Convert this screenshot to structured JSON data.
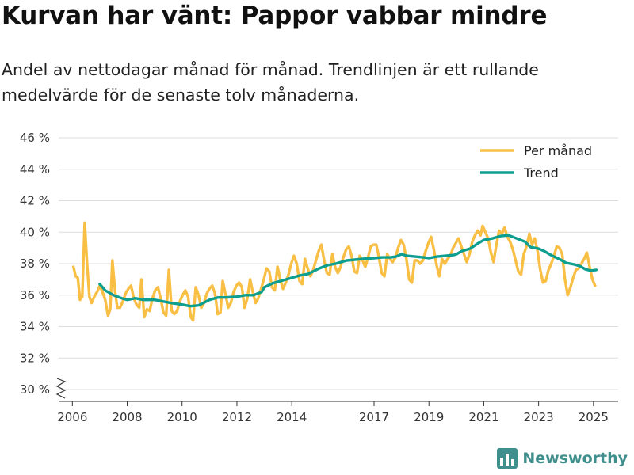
{
  "title": "Kurvan har vänt: Pappor vabbar mindre",
  "subtitle": "Andel av nettodagar månad för månad. Trendlinjen är ett rullande medelvärde för de senaste tolv månaderna.",
  "brand": "Newsworthy",
  "colors": {
    "monthly": "#f9bf45",
    "trend": "#0d9e8f",
    "grid": "#dddddd",
    "brand": "#3f8f8c"
  },
  "chart_data": {
    "type": "line",
    "title": "Kurvan har vänt: Pappor vabbar mindre",
    "xlabel": "",
    "ylabel": "",
    "x_range": [
      2005.5,
      2025.9
    ],
    "ylim": [
      30,
      46
    ],
    "y_break_below": 30,
    "y_ticks": [
      30,
      32,
      34,
      36,
      38,
      40,
      42,
      44,
      46
    ],
    "y_tick_labels": [
      "30 %",
      "32 %",
      "34 %",
      "36 %",
      "38 %",
      "40 %",
      "42 %",
      "44 %",
      "46 %"
    ],
    "x_ticks": [
      2006,
      2008,
      2010,
      2012,
      2014,
      2017,
      2019,
      2021,
      2023,
      2025
    ],
    "x_tick_labels": [
      "2006",
      "2008",
      "2010",
      "2012",
      "2014",
      "2017",
      "2019",
      "2021",
      "2023",
      "2025"
    ],
    "legend_position": "top-right",
    "series": [
      {
        "name": "Per månad",
        "points": [
          [
            2006.04,
            37.8
          ],
          [
            2006.12,
            37.2
          ],
          [
            2006.2,
            37.1
          ],
          [
            2006.28,
            35.7
          ],
          [
            2006.36,
            35.9
          ],
          [
            2006.45,
            40.6
          ],
          [
            2006.54,
            37.9
          ],
          [
            2006.62,
            35.9
          ],
          [
            2006.7,
            35.5
          ],
          [
            2006.8,
            35.9
          ],
          [
            2006.9,
            36.2
          ],
          [
            2007.0,
            36.6
          ],
          [
            2007.1,
            36.2
          ],
          [
            2007.2,
            35.7
          ],
          [
            2007.3,
            34.7
          ],
          [
            2007.38,
            35.1
          ],
          [
            2007.46,
            38.2
          ],
          [
            2007.56,
            36.2
          ],
          [
            2007.64,
            35.2
          ],
          [
            2007.74,
            35.2
          ],
          [
            2007.84,
            35.6
          ],
          [
            2007.94,
            36.1
          ],
          [
            2008.04,
            36.4
          ],
          [
            2008.14,
            36.6
          ],
          [
            2008.24,
            35.8
          ],
          [
            2008.34,
            35.4
          ],
          [
            2008.44,
            35.2
          ],
          [
            2008.52,
            37.0
          ],
          [
            2008.62,
            34.6
          ],
          [
            2008.72,
            35.1
          ],
          [
            2008.82,
            35.0
          ],
          [
            2008.92,
            35.8
          ],
          [
            2009.02,
            36.3
          ],
          [
            2009.12,
            36.5
          ],
          [
            2009.22,
            35.8
          ],
          [
            2009.32,
            34.9
          ],
          [
            2009.42,
            34.7
          ],
          [
            2009.52,
            37.6
          ],
          [
            2009.62,
            35.0
          ],
          [
            2009.72,
            34.8
          ],
          [
            2009.82,
            35.0
          ],
          [
            2009.92,
            35.6
          ],
          [
            2010.02,
            36.0
          ],
          [
            2010.12,
            36.3
          ],
          [
            2010.22,
            35.9
          ],
          [
            2010.32,
            34.6
          ],
          [
            2010.4,
            34.4
          ],
          [
            2010.5,
            36.5
          ],
          [
            2010.6,
            36.0
          ],
          [
            2010.7,
            35.2
          ],
          [
            2010.8,
            35.5
          ],
          [
            2010.9,
            36.1
          ],
          [
            2011.0,
            36.4
          ],
          [
            2011.1,
            36.6
          ],
          [
            2011.2,
            36.1
          ],
          [
            2011.3,
            34.8
          ],
          [
            2011.4,
            34.9
          ],
          [
            2011.48,
            36.9
          ],
          [
            2011.58,
            36.1
          ],
          [
            2011.68,
            35.2
          ],
          [
            2011.78,
            35.5
          ],
          [
            2011.88,
            36.2
          ],
          [
            2011.98,
            36.6
          ],
          [
            2012.08,
            36.8
          ],
          [
            2012.18,
            36.5
          ],
          [
            2012.28,
            35.2
          ],
          [
            2012.38,
            35.8
          ],
          [
            2012.48,
            37.0
          ],
          [
            2012.58,
            36.2
          ],
          [
            2012.68,
            35.5
          ],
          [
            2012.78,
            35.8
          ],
          [
            2012.88,
            36.4
          ],
          [
            2012.98,
            37.0
          ],
          [
            2013.08,
            37.7
          ],
          [
            2013.18,
            37.5
          ],
          [
            2013.28,
            36.5
          ],
          [
            2013.38,
            36.3
          ],
          [
            2013.48,
            37.8
          ],
          [
            2013.58,
            37.0
          ],
          [
            2013.68,
            36.4
          ],
          [
            2013.78,
            36.8
          ],
          [
            2013.88,
            37.3
          ],
          [
            2013.98,
            38.0
          ],
          [
            2014.08,
            38.5
          ],
          [
            2014.18,
            38.0
          ],
          [
            2014.28,
            36.9
          ],
          [
            2014.38,
            36.7
          ],
          [
            2014.48,
            38.3
          ],
          [
            2014.58,
            37.7
          ],
          [
            2014.68,
            37.2
          ],
          [
            2014.78,
            37.6
          ],
          [
            2014.88,
            38.2
          ],
          [
            2014.98,
            38.8
          ],
          [
            2015.08,
            39.2
          ],
          [
            2015.18,
            38.2
          ],
          [
            2015.28,
            37.4
          ],
          [
            2015.38,
            37.3
          ],
          [
            2015.48,
            38.6
          ],
          [
            2015.58,
            37.8
          ],
          [
            2015.68,
            37.4
          ],
          [
            2015.78,
            37.8
          ],
          [
            2015.88,
            38.4
          ],
          [
            2015.98,
            38.9
          ],
          [
            2016.08,
            39.1
          ],
          [
            2016.18,
            38.5
          ],
          [
            2016.28,
            37.5
          ],
          [
            2016.38,
            37.4
          ],
          [
            2016.48,
            38.5
          ],
          [
            2016.58,
            38.2
          ],
          [
            2016.68,
            37.8
          ],
          [
            2016.78,
            38.4
          ],
          [
            2016.88,
            39.1
          ],
          [
            2016.98,
            39.2
          ],
          [
            2017.08,
            39.2
          ],
          [
            2017.18,
            38.4
          ],
          [
            2017.28,
            37.4
          ],
          [
            2017.38,
            37.2
          ],
          [
            2017.48,
            38.6
          ],
          [
            2017.58,
            38.3
          ],
          [
            2017.68,
            38.1
          ],
          [
            2017.78,
            38.4
          ],
          [
            2017.88,
            39.0
          ],
          [
            2017.98,
            39.5
          ],
          [
            2018.08,
            39.2
          ],
          [
            2018.18,
            38.3
          ],
          [
            2018.28,
            37.0
          ],
          [
            2018.38,
            36.8
          ],
          [
            2018.48,
            38.2
          ],
          [
            2018.58,
            38.2
          ],
          [
            2018.68,
            38.0
          ],
          [
            2018.78,
            38.2
          ],
          [
            2018.88,
            38.8
          ],
          [
            2018.98,
            39.3
          ],
          [
            2019.08,
            39.7
          ],
          [
            2019.18,
            38.9
          ],
          [
            2019.28,
            37.9
          ],
          [
            2019.38,
            37.2
          ],
          [
            2019.48,
            38.3
          ],
          [
            2019.58,
            38.0
          ],
          [
            2019.68,
            38.3
          ],
          [
            2019.78,
            38.5
          ],
          [
            2019.88,
            39.0
          ],
          [
            2019.98,
            39.3
          ],
          [
            2020.08,
            39.6
          ],
          [
            2020.18,
            39.1
          ],
          [
            2020.28,
            38.6
          ],
          [
            2020.38,
            38.1
          ],
          [
            2020.48,
            38.6
          ],
          [
            2020.58,
            39.4
          ],
          [
            2020.68,
            39.8
          ],
          [
            2020.78,
            40.1
          ],
          [
            2020.88,
            39.8
          ],
          [
            2020.96,
            40.4
          ],
          [
            2021.06,
            40.0
          ],
          [
            2021.16,
            39.6
          ],
          [
            2021.26,
            38.7
          ],
          [
            2021.36,
            38.1
          ],
          [
            2021.46,
            39.2
          ],
          [
            2021.56,
            40.1
          ],
          [
            2021.66,
            39.9
          ],
          [
            2021.76,
            40.3
          ],
          [
            2021.86,
            39.7
          ],
          [
            2021.96,
            39.4
          ],
          [
            2022.06,
            38.9
          ],
          [
            2022.16,
            38.2
          ],
          [
            2022.26,
            37.5
          ],
          [
            2022.36,
            37.3
          ],
          [
            2022.46,
            38.6
          ],
          [
            2022.56,
            39.1
          ],
          [
            2022.66,
            39.9
          ],
          [
            2022.76,
            39.2
          ],
          [
            2022.86,
            39.6
          ],
          [
            2022.96,
            38.8
          ],
          [
            2023.06,
            37.6
          ],
          [
            2023.16,
            36.8
          ],
          [
            2023.26,
            36.9
          ],
          [
            2023.36,
            37.6
          ],
          [
            2023.46,
            38.0
          ],
          [
            2023.56,
            38.5
          ],
          [
            2023.66,
            39.1
          ],
          [
            2023.76,
            39.0
          ],
          [
            2023.86,
            38.6
          ],
          [
            2023.96,
            37.0
          ],
          [
            2024.06,
            36.0
          ],
          [
            2024.16,
            36.5
          ],
          [
            2024.26,
            37.1
          ],
          [
            2024.36,
            37.6
          ],
          [
            2024.46,
            37.7
          ],
          [
            2024.56,
            38.0
          ],
          [
            2024.66,
            38.3
          ],
          [
            2024.76,
            38.7
          ],
          [
            2024.86,
            37.8
          ],
          [
            2024.96,
            37.0
          ],
          [
            2025.06,
            36.6
          ]
        ]
      },
      {
        "name": "Trend",
        "points": [
          [
            2007.0,
            36.7
          ],
          [
            2007.2,
            36.3
          ],
          [
            2007.5,
            36.0
          ],
          [
            2007.8,
            35.8
          ],
          [
            2008.0,
            35.7
          ],
          [
            2008.3,
            35.8
          ],
          [
            2008.6,
            35.7
          ],
          [
            2009.0,
            35.7
          ],
          [
            2009.3,
            35.6
          ],
          [
            2009.6,
            35.5
          ],
          [
            2010.0,
            35.4
          ],
          [
            2010.3,
            35.3
          ],
          [
            2010.6,
            35.35
          ],
          [
            2011.0,
            35.7
          ],
          [
            2011.3,
            35.85
          ],
          [
            2011.6,
            35.85
          ],
          [
            2012.0,
            35.9
          ],
          [
            2012.3,
            36.0
          ],
          [
            2012.6,
            36.0
          ],
          [
            2012.9,
            36.2
          ],
          [
            2013.0,
            36.5
          ],
          [
            2013.3,
            36.75
          ],
          [
            2013.6,
            36.9
          ],
          [
            2014.0,
            37.1
          ],
          [
            2014.3,
            37.25
          ],
          [
            2014.6,
            37.35
          ],
          [
            2015.0,
            37.7
          ],
          [
            2015.3,
            37.9
          ],
          [
            2015.6,
            38.0
          ],
          [
            2016.0,
            38.2
          ],
          [
            2016.3,
            38.25
          ],
          [
            2016.6,
            38.3
          ],
          [
            2017.0,
            38.35
          ],
          [
            2017.3,
            38.4
          ],
          [
            2017.6,
            38.4
          ],
          [
            2017.8,
            38.45
          ],
          [
            2018.0,
            38.6
          ],
          [
            2018.2,
            38.5
          ],
          [
            2018.5,
            38.45
          ],
          [
            2018.8,
            38.4
          ],
          [
            2019.0,
            38.35
          ],
          [
            2019.3,
            38.45
          ],
          [
            2019.6,
            38.5
          ],
          [
            2019.9,
            38.55
          ],
          [
            2020.0,
            38.6
          ],
          [
            2020.2,
            38.8
          ],
          [
            2020.5,
            38.95
          ],
          [
            2020.8,
            39.3
          ],
          [
            2021.0,
            39.5
          ],
          [
            2021.3,
            39.6
          ],
          [
            2021.6,
            39.75
          ],
          [
            2021.9,
            39.8
          ],
          [
            2022.2,
            39.6
          ],
          [
            2022.5,
            39.4
          ],
          [
            2022.7,
            39.05
          ],
          [
            2023.0,
            38.95
          ],
          [
            2023.2,
            38.8
          ],
          [
            2023.5,
            38.5
          ],
          [
            2023.8,
            38.25
          ],
          [
            2024.0,
            38.05
          ],
          [
            2024.3,
            37.95
          ],
          [
            2024.5,
            37.85
          ],
          [
            2024.7,
            37.65
          ],
          [
            2024.9,
            37.55
          ],
          [
            2025.1,
            37.6
          ]
        ]
      }
    ]
  }
}
